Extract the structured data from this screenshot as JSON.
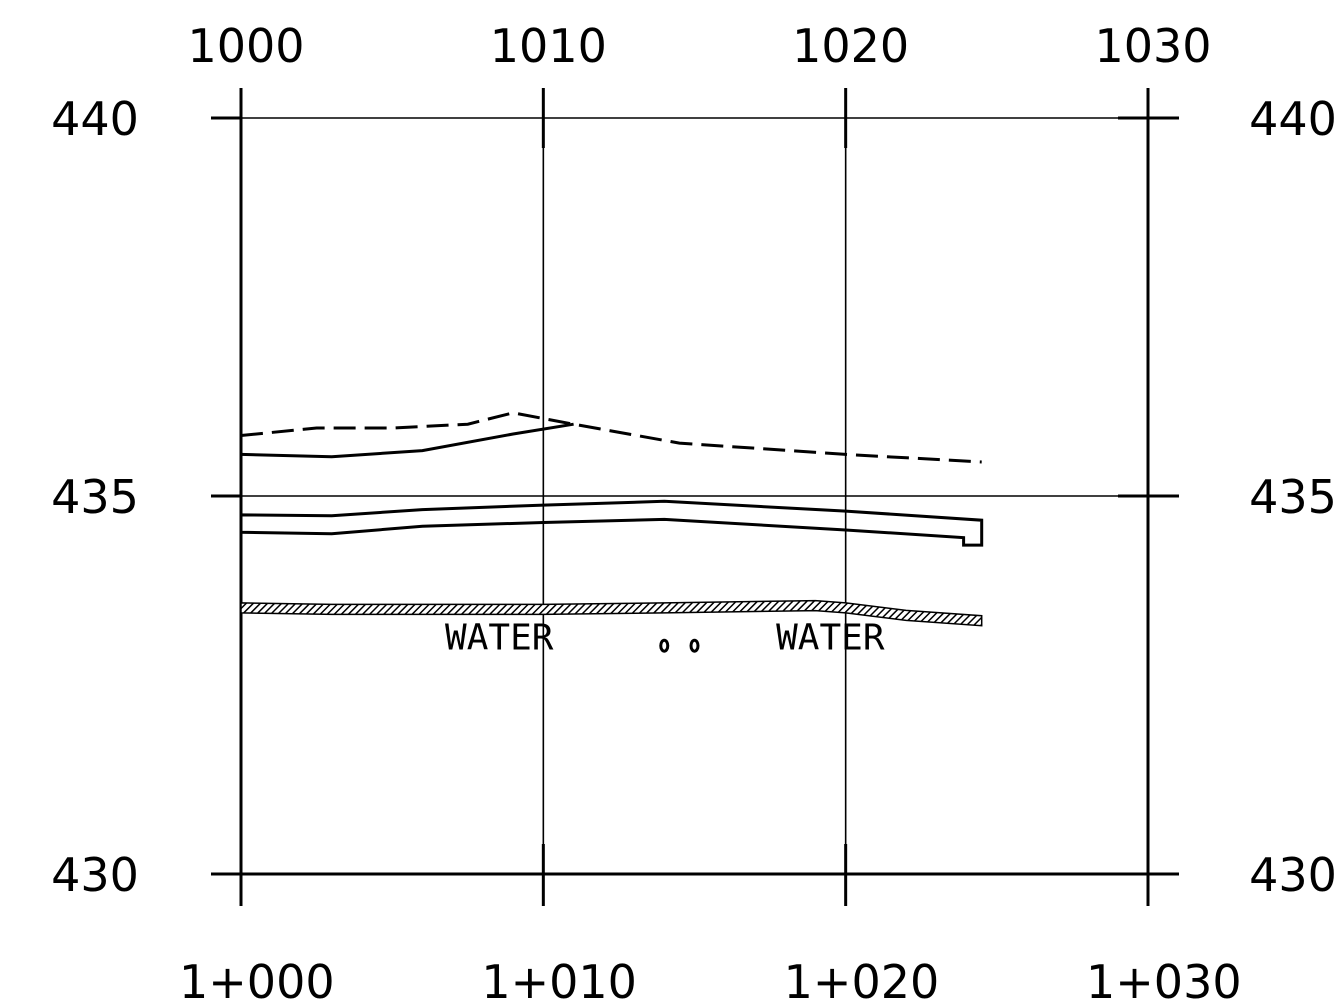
{
  "chart_data": {
    "type": "line",
    "x_top_labels": [
      "1000",
      "1010",
      "1020",
      "1030"
    ],
    "x_bottom_labels": [
      "1+000",
      "1+010",
      "1+020",
      "1+030"
    ],
    "y_labels": [
      "440",
      "435",
      "430"
    ],
    "xlim": [
      1000,
      1030
    ],
    "ylim": [
      430,
      440
    ],
    "grid": true,
    "series": [
      {
        "style": "dashed",
        "points": [
          [
            1000,
            435.8
          ],
          [
            1002.5,
            435.9
          ],
          [
            1005,
            435.9
          ],
          [
            1007.5,
            435.95
          ],
          [
            1009,
            436.1
          ],
          [
            1011,
            435.95
          ],
          [
            1014.5,
            435.7
          ],
          [
            1020,
            435.55
          ],
          [
            1024.5,
            435.45
          ]
        ]
      },
      {
        "style": "solid",
        "points": [
          [
            1000,
            435.55
          ],
          [
            1003,
            435.52
          ],
          [
            1006,
            435.6
          ],
          [
            1009,
            435.82
          ],
          [
            1011,
            435.95
          ]
        ]
      },
      {
        "style": "solid",
        "points": [
          [
            1000,
            434.75
          ],
          [
            1003,
            434.74
          ],
          [
            1006,
            434.82
          ],
          [
            1010,
            434.88
          ],
          [
            1014,
            434.93
          ],
          [
            1020,
            434.8
          ],
          [
            1024.5,
            434.68
          ],
          [
            1024.5,
            434.35
          ],
          [
            1023.9,
            434.35
          ],
          [
            1023.9,
            434.45
          ],
          [
            1020,
            434.55
          ],
          [
            1014,
            434.69
          ],
          [
            1010,
            434.65
          ],
          [
            1006,
            434.6
          ],
          [
            1003,
            434.5
          ],
          [
            1000,
            434.52
          ]
        ]
      },
      {
        "style": "hatched",
        "points": [
          [
            1000,
            433.52
          ],
          [
            1003,
            433.5
          ],
          [
            1006,
            433.5
          ],
          [
            1010,
            433.5
          ],
          [
            1014,
            433.52
          ],
          [
            1019,
            433.55
          ],
          [
            1020,
            433.52
          ],
          [
            1022,
            433.42
          ],
          [
            1024.5,
            433.35
          ]
        ]
      }
    ],
    "annotations": [
      {
        "text": "WATER",
        "x": 1010.4,
        "y": 432.97
      },
      {
        "text": "WATER",
        "x": 1017.7,
        "y": 432.97
      }
    ],
    "markers": [
      [
        1014,
        433.02
      ],
      [
        1015,
        433.02
      ]
    ]
  }
}
